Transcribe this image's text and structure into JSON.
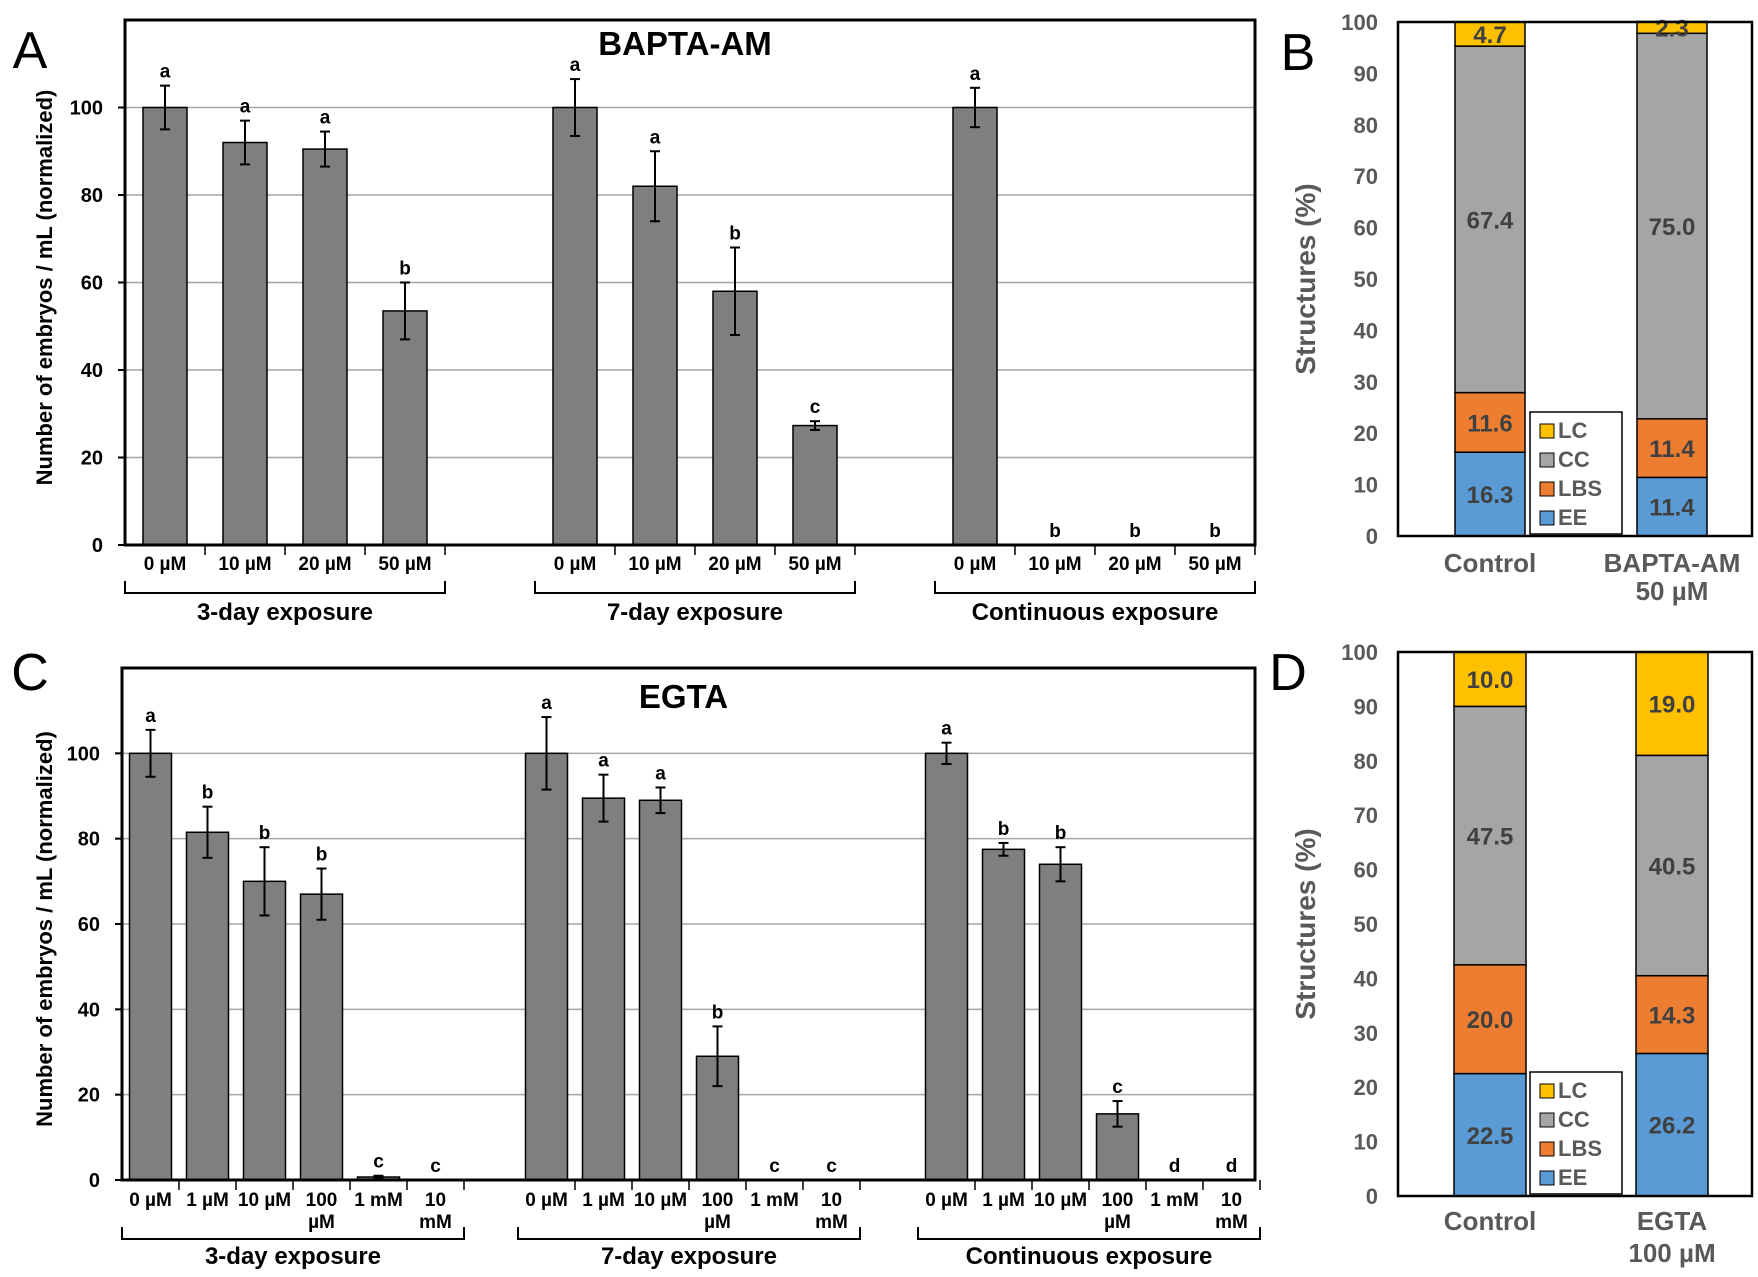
{
  "chart_data": [
    {
      "panel": "A",
      "type": "bar",
      "title": "BAPTA-AM",
      "ylabel": "Number of embryos / mL (normalized)",
      "ylim": [
        0,
        120
      ],
      "yticks": [
        0,
        20,
        40,
        60,
        80,
        100
      ],
      "grid": true,
      "groups": [
        {
          "label": "3-day exposure",
          "categories": [
            "0 µM",
            "10 µM",
            "20 µM",
            "50 µM"
          ],
          "values": [
            100,
            92,
            90.5,
            53.5
          ],
          "errors": [
            5,
            5,
            4,
            6.5
          ],
          "letters": [
            "a",
            "a",
            "a",
            "b"
          ]
        },
        {
          "label": "7-day exposure",
          "categories": [
            "0 µM",
            "10 µM",
            "20 µM",
            "50 µM"
          ],
          "values": [
            100,
            82,
            58,
            27.3
          ],
          "errors": [
            6.5,
            8,
            10,
            1
          ],
          "letters": [
            "a",
            "a",
            "b",
            "c"
          ]
        },
        {
          "label": "Continuous exposure",
          "categories": [
            "0 µM",
            "10 µM",
            "20 µM",
            "50 µM"
          ],
          "values": [
            100,
            0,
            0,
            0
          ],
          "errors": [
            4.5,
            0,
            0,
            0
          ],
          "letters": [
            "a",
            "b",
            "b",
            "b"
          ]
        }
      ]
    },
    {
      "panel": "B",
      "type": "stacked-bar",
      "ylabel": "Structures (%)",
      "ylim": [
        0,
        100
      ],
      "yticks": [
        0,
        10,
        20,
        30,
        40,
        50,
        60,
        70,
        80,
        90,
        100
      ],
      "legend": [
        "LC",
        "CC",
        "LBS",
        "EE"
      ],
      "legend_position": "bottom-center",
      "categories": [
        "Control",
        "BAPTA-AM 50 µM"
      ],
      "category_lines": [
        [
          "Control"
        ],
        [
          "BAPTA-AM",
          "50 µM"
        ]
      ],
      "series": [
        {
          "name": "EE",
          "color": "#5b9bd5",
          "values": [
            16.3,
            11.4
          ],
          "labels": [
            "16.3",
            "11.4"
          ]
        },
        {
          "name": "LBS",
          "color": "#ed7d31",
          "values": [
            11.6,
            11.4
          ],
          "labels": [
            "11.6",
            "11.4"
          ]
        },
        {
          "name": "CC",
          "color": "#a5a5a5",
          "values": [
            67.4,
            75.0
          ],
          "labels": [
            "67.4",
            "75.0"
          ]
        },
        {
          "name": "LC",
          "color": "#ffc000",
          "values": [
            4.7,
            2.3
          ],
          "labels": [
            "4.7",
            "2.3"
          ]
        }
      ]
    },
    {
      "panel": "C",
      "type": "bar",
      "title": "EGTA",
      "ylabel": "Number of embryos / mL (normalized)",
      "ylim": [
        0,
        120
      ],
      "yticks": [
        0,
        20,
        40,
        60,
        80,
        100
      ],
      "grid": true,
      "groups": [
        {
          "label": "3-day exposure",
          "categories": [
            [
              "0 µM"
            ],
            [
              "1 µM"
            ],
            [
              "10 µM"
            ],
            [
              "100",
              "µM"
            ],
            [
              "1 mM"
            ],
            [
              "10",
              "mM"
            ]
          ],
          "values": [
            100,
            81.5,
            70,
            67,
            0.7,
            0
          ],
          "errors": [
            5.5,
            6,
            8,
            6,
            0.3,
            0
          ],
          "letters": [
            "a",
            "b",
            "b",
            "b",
            "c",
            "c"
          ]
        },
        {
          "label": "7-day exposure",
          "categories": [
            [
              "0 µM"
            ],
            [
              "1 µM"
            ],
            [
              "10 µM"
            ],
            [
              "100",
              "µM"
            ],
            [
              "1 mM"
            ],
            [
              "10",
              "mM"
            ]
          ],
          "values": [
            100,
            89.5,
            89,
            29,
            0,
            0
          ],
          "errors": [
            8.5,
            5.5,
            3,
            7,
            0,
            0
          ],
          "letters": [
            "a",
            "a",
            "a",
            "b",
            "c",
            "c"
          ]
        },
        {
          "label": "Continuous exposure",
          "categories": [
            [
              "0 µM"
            ],
            [
              "1 µM"
            ],
            [
              "10 µM"
            ],
            [
              "100",
              "µM"
            ],
            [
              "1 mM"
            ],
            [
              "10",
              "mM"
            ]
          ],
          "values": [
            100,
            77.5,
            74,
            15.5,
            0,
            0
          ],
          "errors": [
            2.5,
            1.5,
            4,
            3,
            0,
            0
          ],
          "letters": [
            "a",
            "b",
            "b",
            "c",
            "d",
            "d"
          ]
        }
      ]
    },
    {
      "panel": "D",
      "type": "stacked-bar",
      "ylabel": "Structures (%)",
      "ylim": [
        0,
        100
      ],
      "yticks": [
        0,
        10,
        20,
        30,
        40,
        50,
        60,
        70,
        80,
        90,
        100
      ],
      "legend": [
        "LC",
        "CC",
        "LBS",
        "EE"
      ],
      "legend_position": "bottom-center",
      "categories": [
        "Control",
        "EGTA 100 µM"
      ],
      "category_lines": [
        [
          "Control"
        ],
        [
          "EGTA",
          "100 µM"
        ]
      ],
      "series": [
        {
          "name": "EE",
          "color": "#5b9bd5",
          "values": [
            22.5,
            26.2
          ],
          "labels": [
            "22.5",
            "26.2"
          ]
        },
        {
          "name": "LBS",
          "color": "#ed7d31",
          "values": [
            20.0,
            14.3
          ],
          "labels": [
            "20.0",
            "14.3"
          ]
        },
        {
          "name": "CC",
          "color": "#a5a5a5",
          "values": [
            47.5,
            40.5
          ],
          "labels": [
            "47.5",
            "40.5"
          ]
        },
        {
          "name": "LC",
          "color": "#ffc000",
          "values": [
            10.0,
            19.0
          ],
          "labels": [
            "10.0",
            "19.0"
          ]
        }
      ]
    }
  ]
}
